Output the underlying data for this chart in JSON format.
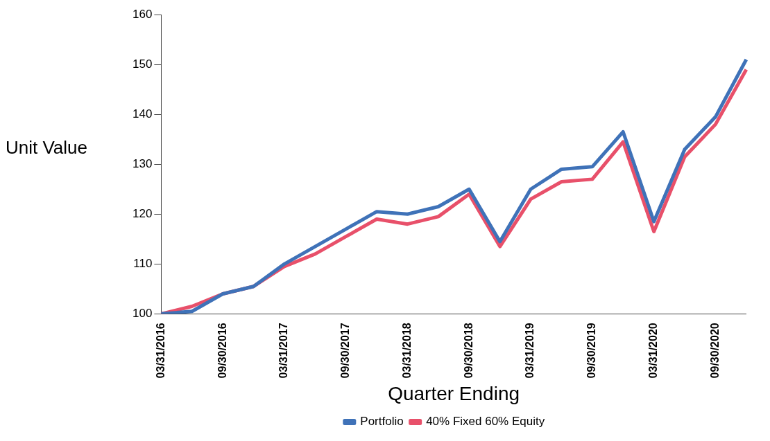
{
  "chart_data": {
    "type": "line",
    "xlabel": "Quarter Ending",
    "ylabel": "Unit Value",
    "categories": [
      "03/31/2016",
      null,
      "09/30/2016",
      null,
      "03/31/2017",
      null,
      "09/30/2017",
      null,
      "03/31/2018",
      null,
      "09/30/2018",
      null,
      "03/31/2019",
      null,
      "09/30/2019",
      null,
      "03/31/2020",
      null,
      "09/30/2020",
      null
    ],
    "series": [
      {
        "name": "Portfolio",
        "color": "#3f72b8",
        "values": [
          100,
          100.5,
          104,
          105.5,
          110,
          113.5,
          117,
          120.5,
          120,
          121.5,
          125,
          114.5,
          125,
          129,
          129.5,
          136.5,
          118.5,
          133,
          139.5,
          151
        ]
      },
      {
        "name": "40% Fixed 60% Equity",
        "color": "#e8506a",
        "values": [
          100,
          101.5,
          104,
          105.5,
          109.5,
          112,
          115.5,
          119,
          118,
          119.5,
          124,
          113.5,
          123,
          126.5,
          127,
          134.5,
          116.5,
          131.5,
          138,
          149
        ]
      }
    ],
    "ylim": [
      100,
      160
    ],
    "yticks": [
      100,
      110,
      120,
      130,
      140,
      150,
      160
    ],
    "grid": false,
    "legend": "bottom",
    "marker": "none",
    "line_style": "solid"
  }
}
